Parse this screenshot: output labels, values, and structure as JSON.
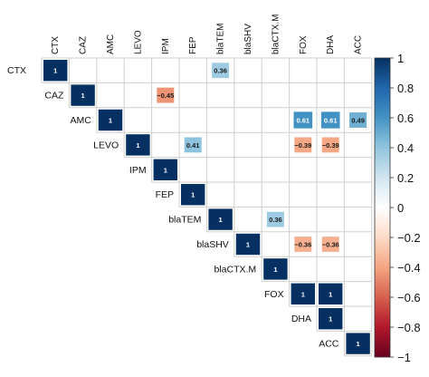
{
  "chart_data": {
    "type": "heatmap",
    "variables": [
      "CTX",
      "CAZ",
      "AMC",
      "LEVO",
      "IPM",
      "FEP",
      "blaTEM",
      "blaSHV",
      "blaCTX.M",
      "FOX",
      "DHA",
      "ACC"
    ],
    "layout": "upper-triangle",
    "diagonal_values": [
      1,
      1,
      1,
      1,
      1,
      1,
      1,
      1,
      1,
      1,
      1,
      1
    ],
    "cells": [
      {
        "row": "CTX",
        "col": "blaTEM",
        "value": 0.36
      },
      {
        "row": "CAZ",
        "col": "IPM",
        "value": -0.45
      },
      {
        "row": "AMC",
        "col": "FOX",
        "value": 0.61
      },
      {
        "row": "AMC",
        "col": "DHA",
        "value": 0.61
      },
      {
        "row": "AMC",
        "col": "ACC",
        "value": 0.49
      },
      {
        "row": "LEVO",
        "col": "FEP",
        "value": 0.41
      },
      {
        "row": "LEVO",
        "col": "FOX",
        "value": -0.39
      },
      {
        "row": "LEVO",
        "col": "DHA",
        "value": -0.39
      },
      {
        "row": "blaTEM",
        "col": "blaCTX.M",
        "value": 0.36
      },
      {
        "row": "blaSHV",
        "col": "FOX",
        "value": -0.36
      },
      {
        "row": "blaSHV",
        "col": "DHA",
        "value": -0.36
      },
      {
        "row": "FOX",
        "col": "DHA",
        "value": 1
      }
    ],
    "colorbar": {
      "range": [
        -1,
        1
      ],
      "ticks": [
        "-1",
        "-0.8",
        "-0.6",
        "-0.4",
        "-0.2",
        "0",
        "0.2",
        "0.4",
        "0.6",
        "0.8",
        "1"
      ],
      "colors": {
        "negative": "#67001F",
        "neutral": "#FFFFFF",
        "positive": "#053061"
      }
    },
    "grid": true,
    "legend_position": "right"
  }
}
